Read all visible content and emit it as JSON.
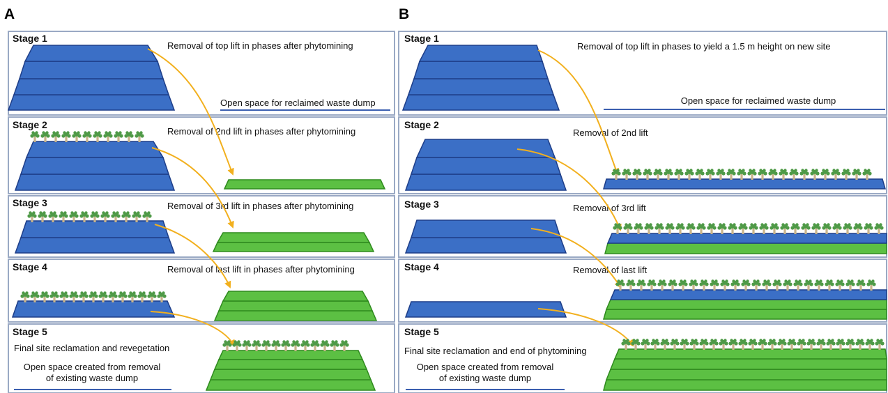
{
  "colors": {
    "waste_fill": "#3b6fc6",
    "waste_stroke": "#1e3e88",
    "reclaimed_fill": "#5cc043",
    "reclaimed_stroke": "#2f8a1e",
    "arrow": "#f2b01e",
    "box_border": "#9aa9c4",
    "ground_line": "#3b5fb0",
    "plant_leaf": "#4f9a47",
    "plant_stem": "#c9b48a"
  },
  "icons": [
    "plant-icon",
    "curved-arrow-icon"
  ],
  "panel_a": {
    "letter": "A",
    "stages": [
      {
        "title": "Stage 1",
        "caption": "Removal of top lift in phases after phytomining",
        "extra": "Open space for reclaimed waste dump"
      },
      {
        "title": "Stage 2",
        "caption": "Removal of 2nd lift in phases after phytomining"
      },
      {
        "title": "Stage 3",
        "caption": "Removal of 3rd lift in phases after phytomining"
      },
      {
        "title": "Stage 4",
        "caption": "Removal of last lift in phases after phytomining"
      },
      {
        "title": "Stage 5",
        "caption": "Final site reclamation and revegetation",
        "extra_line1": "Open space created from removal",
        "extra_line2": "of existing waste dump"
      }
    ]
  },
  "panel_b": {
    "letter": "B",
    "stages": [
      {
        "title": "Stage 1",
        "caption": "Removal of top lift in phases to yield a 1.5 m height on new site",
        "extra": "Open space for reclaimed waste dump"
      },
      {
        "title": "Stage 2",
        "caption": "Removal of 2nd lift"
      },
      {
        "title": "Stage 3",
        "caption": "Removal of 3rd lift"
      },
      {
        "title": "Stage 4",
        "caption": "Removal of last lift"
      },
      {
        "title": "Stage 5",
        "caption": "Final site reclamation and end of phytomining",
        "extra_line1": "Open space created from removal",
        "extra_line2": "of existing waste dump"
      }
    ]
  }
}
